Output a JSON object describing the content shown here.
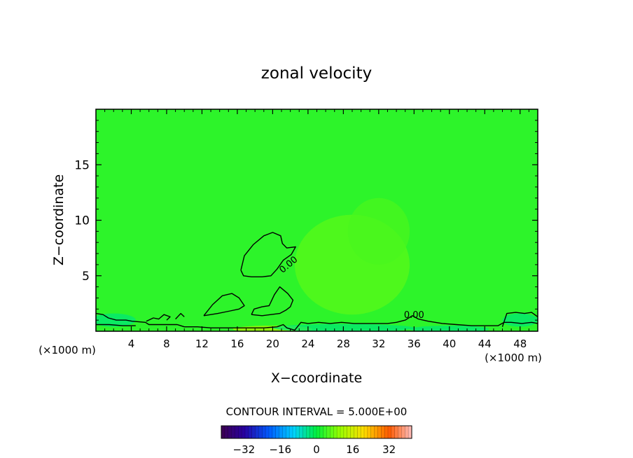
{
  "chart_data": {
    "type": "heatmap",
    "title": "zonal velocity",
    "xlabel": "X−coordinate",
    "ylabel": "Z−coordinate",
    "x_unit_left": "(×1000 m)",
    "x_unit_right": "(×1000 m)",
    "xlim": [
      0,
      50
    ],
    "ylim": [
      0,
      20
    ],
    "x_ticks": [
      4,
      8,
      12,
      16,
      20,
      24,
      28,
      32,
      36,
      40,
      44,
      48
    ],
    "x_tick_labels": [
      "4",
      "8",
      "12",
      "16",
      "20",
      "24",
      "28",
      "32",
      "36",
      "40",
      "44",
      "48"
    ],
    "y_ticks": [
      5,
      10,
      15
    ],
    "y_tick_labels": [
      "5",
      "10",
      "15"
    ],
    "contour_interval_label": "CONTOUR INTERVAL = 5.000E+00",
    "contour_labels": [
      {
        "text": "0.00",
        "x": 22.0,
        "z": 5.8
      },
      {
        "text": "0.00",
        "x": 36.0,
        "z": 1.2
      }
    ],
    "colorbar": {
      "range": [
        -42,
        42
      ],
      "ticks": [
        -32,
        -16,
        0,
        16,
        32
      ],
      "tick_labels": [
        "−32",
        "−16",
        "0",
        "16",
        "32"
      ]
    },
    "background_value": 3,
    "zero_contours": [
      [
        [
          16.4,
          5.5
        ],
        [
          16.8,
          6.8
        ],
        [
          17.8,
          7.8
        ],
        [
          19.0,
          8.6
        ],
        [
          20.0,
          8.9
        ],
        [
          20.9,
          8.6
        ],
        [
          21.1,
          7.9
        ],
        [
          21.6,
          7.5
        ],
        [
          22.6,
          7.6
        ],
        [
          22.1,
          6.9
        ],
        [
          21.2,
          6.4
        ],
        [
          20.5,
          5.6
        ],
        [
          19.8,
          5.0
        ],
        [
          18.8,
          4.9
        ],
        [
          17.6,
          4.9
        ],
        [
          16.7,
          5.0
        ],
        [
          16.4,
          5.5
        ]
      ],
      [
        [
          12.2,
          1.4
        ],
        [
          13.2,
          2.4
        ],
        [
          14.3,
          3.2
        ],
        [
          15.4,
          3.4
        ],
        [
          16.2,
          3.0
        ],
        [
          16.8,
          2.3
        ],
        [
          16.2,
          2.0
        ],
        [
          15.0,
          1.8
        ],
        [
          13.8,
          1.6
        ],
        [
          12.2,
          1.4
        ]
      ],
      [
        [
          17.6,
          1.5
        ],
        [
          17.9,
          2.0
        ],
        [
          18.8,
          2.2
        ],
        [
          19.6,
          2.3
        ],
        [
          20.2,
          3.3
        ],
        [
          20.8,
          4.0
        ],
        [
          21.7,
          3.4
        ],
        [
          22.3,
          2.8
        ],
        [
          22.0,
          2.2
        ],
        [
          21.5,
          1.9
        ],
        [
          20.8,
          1.6
        ],
        [
          19.8,
          1.5
        ],
        [
          18.8,
          1.4
        ],
        [
          17.6,
          1.5
        ]
      ],
      [
        [
          0.0,
          1.6
        ],
        [
          0.8,
          1.5
        ],
        [
          1.4,
          1.2
        ],
        [
          2.3,
          1.0
        ],
        [
          3.4,
          1.0
        ],
        [
          4.1,
          0.9
        ],
        [
          5.6,
          0.8
        ],
        [
          6.0,
          0.6
        ],
        [
          7.6,
          0.6
        ],
        [
          9.2,
          0.6
        ],
        [
          10.0,
          0.4
        ],
        [
          11.5,
          0.4
        ],
        [
          13.0,
          0.3
        ],
        [
          15.0,
          0.3
        ],
        [
          17.0,
          0.3
        ],
        [
          19.0,
          0.3
        ],
        [
          20.5,
          0.4
        ],
        [
          21.2,
          0.6
        ],
        [
          21.6,
          0.3
        ],
        [
          22.5,
          0.1
        ],
        [
          23.2,
          0.8
        ],
        [
          24.0,
          0.7
        ],
        [
          25.2,
          0.8
        ],
        [
          26.5,
          0.7
        ],
        [
          27.8,
          0.8
        ],
        [
          29.2,
          0.7
        ],
        [
          30.6,
          0.7
        ],
        [
          31.8,
          0.7
        ],
        [
          33.0,
          0.7
        ],
        [
          34.0,
          0.8
        ],
        [
          35.0,
          1.0
        ],
        [
          35.8,
          1.4
        ],
        [
          36.5,
          1.1
        ],
        [
          37.6,
          0.9
        ],
        [
          39.2,
          0.7
        ],
        [
          40.8,
          0.6
        ],
        [
          42.5,
          0.5
        ],
        [
          44.5,
          0.5
        ],
        [
          45.5,
          0.5
        ],
        [
          46.2,
          0.8
        ],
        [
          47.0,
          0.8
        ],
        [
          48.2,
          0.7
        ],
        [
          49.3,
          0.8
        ],
        [
          50.0,
          0.7
        ]
      ],
      [
        [
          0.0,
          0.6
        ],
        [
          1.5,
          0.6
        ],
        [
          3.0,
          0.5
        ],
        [
          4.5,
          0.5
        ]
      ],
      [
        [
          5.7,
          0.9
        ],
        [
          6.5,
          1.2
        ],
        [
          7.1,
          1.1
        ],
        [
          7.7,
          1.5
        ],
        [
          8.4,
          1.3
        ],
        [
          8.0,
          1.0
        ]
      ],
      [
        [
          9.0,
          1.1
        ],
        [
          9.6,
          1.6
        ],
        [
          10.0,
          1.3
        ]
      ],
      [
        [
          46.0,
          0.4
        ],
        [
          46.5,
          1.6
        ],
        [
          47.5,
          1.7
        ],
        [
          48.5,
          1.6
        ],
        [
          49.3,
          1.7
        ],
        [
          50.0,
          1.3
        ]
      ]
    ],
    "field_patches": [
      {
        "cx": 29.0,
        "cz": 6.0,
        "rx": 6.5,
        "rz": 4.5,
        "value": 6
      },
      {
        "cx": 32.0,
        "cz": 9.0,
        "rx": 3.5,
        "rz": 3.0,
        "value": 5
      },
      {
        "cx": 20.0,
        "cz": 0.2,
        "rx": 4.5,
        "rz": 0.3,
        "value": 13
      },
      {
        "cx": 28.0,
        "cz": 0.3,
        "rx": 8.0,
        "rz": 0.35,
        "value": -3
      },
      {
        "cx": 40.0,
        "cz": 0.2,
        "rx": 4.5,
        "rz": 0.3,
        "value": -3
      },
      {
        "cx": 2.0,
        "cz": 1.0,
        "rx": 2.5,
        "rz": 0.6,
        "value": -3
      },
      {
        "cx": 48.0,
        "cz": 1.0,
        "rx": 2.0,
        "rz": 0.6,
        "value": -3
      }
    ]
  }
}
